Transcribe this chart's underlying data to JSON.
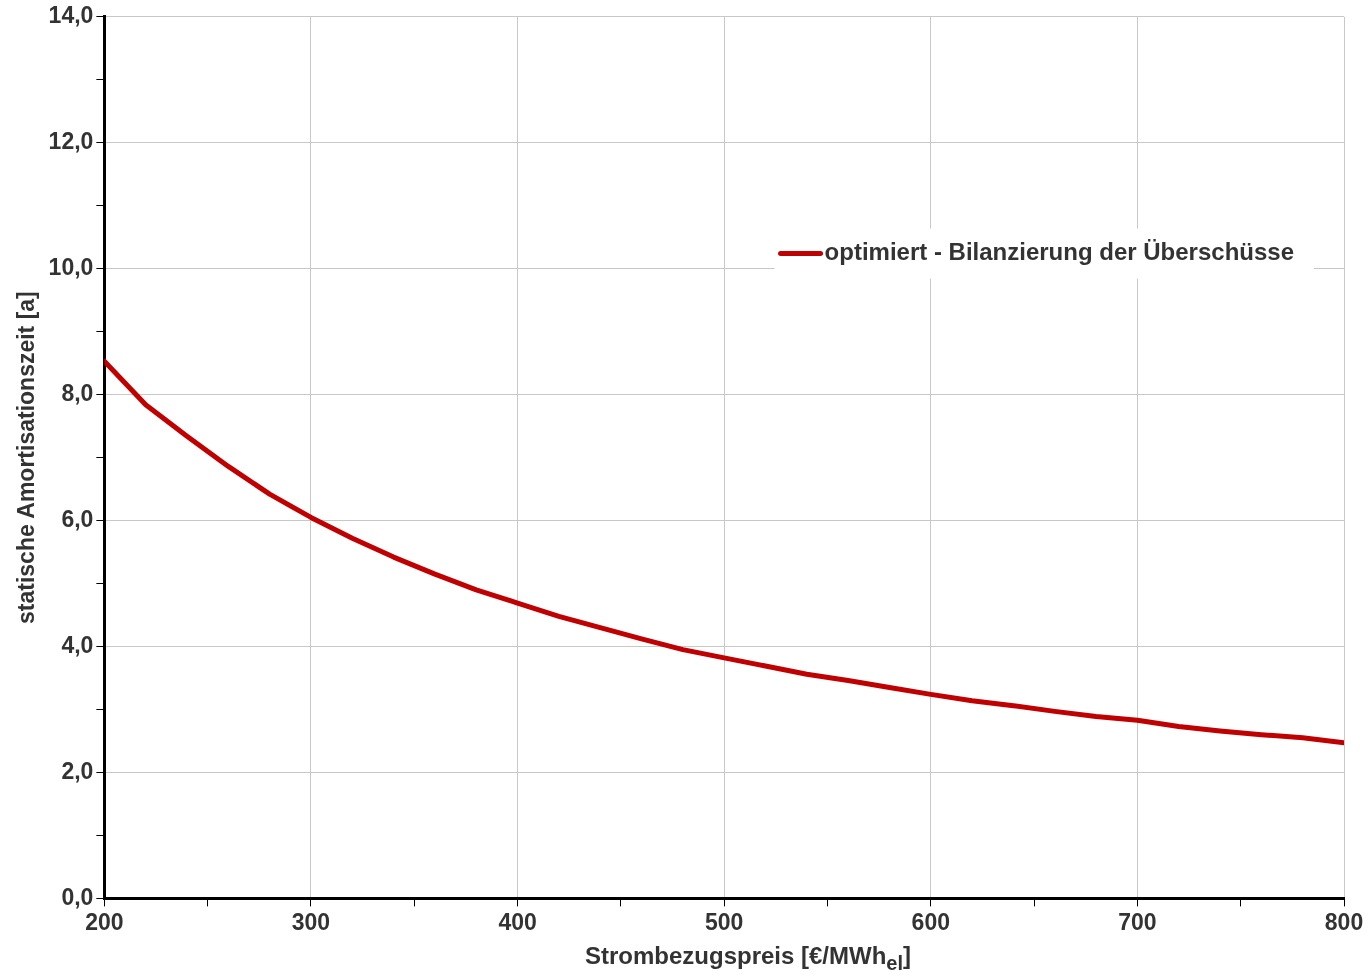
{
  "chart_data": {
    "type": "line",
    "xlabel": "Strombezugspreis [€/MWh$_{el}$]",
    "ylabel": "statische Amortisationszeit [a]",
    "xlim": [
      200,
      800
    ],
    "xticks": [
      200,
      {
        "value": 250,
        "label": null
      },
      300,
      {
        "value": 350,
        "label": null
      },
      400,
      {
        "value": 450,
        "label": null
      },
      500,
      {
        "value": 550,
        "label": null
      },
      600,
      {
        "value": 650,
        "label": null
      },
      700,
      {
        "value": 750,
        "label": null
      },
      800
    ],
    "ylim": [
      0,
      14
    ],
    "yticks": [
      {
        "value": 0,
        "label": "0,0"
      },
      {
        "value": 1,
        "label": null
      },
      {
        "value": 2,
        "label": "2,0"
      },
      {
        "value": 3,
        "label": null
      },
      {
        "value": 4,
        "label": "4,0"
      },
      {
        "value": 5,
        "label": null
      },
      {
        "value": 6,
        "label": "6,0"
      },
      {
        "value": 7,
        "label": null
      },
      {
        "value": 8,
        "label": "8,0"
      },
      {
        "value": 9,
        "label": null
      },
      {
        "value": 10,
        "label": "10,0"
      },
      {
        "value": 11,
        "label": null
      },
      {
        "value": 12,
        "label": "12,0"
      },
      {
        "value": 13,
        "label": null
      },
      {
        "value": 14,
        "label": "14,0"
      }
    ],
    "grid": true,
    "legend": "top right",
    "marker": "none",
    "line_style": "solid",
    "x": [
      200,
      220,
      240,
      260,
      280,
      300,
      320,
      340,
      360,
      380,
      400,
      420,
      440,
      460,
      480,
      500,
      520,
      540,
      560,
      580,
      600,
      620,
      640,
      660,
      680,
      700,
      720,
      740,
      760,
      780,
      800
    ],
    "series": [
      {
        "name": "optimiert - Bilanzierung der Überschüsse",
        "color": "#c00000",
        "values": [
          8.53,
          7.84,
          7.34,
          6.86,
          6.42,
          6.05,
          5.72,
          5.42,
          5.15,
          4.9,
          4.69,
          4.48,
          4.3,
          4.12,
          3.95,
          3.82,
          3.69,
          3.56,
          3.46,
          3.35,
          3.24,
          3.14,
          3.06,
          2.97,
          2.89,
          2.83,
          2.73,
          2.66,
          2.6,
          2.55,
          2.47
        ]
      }
    ]
  }
}
